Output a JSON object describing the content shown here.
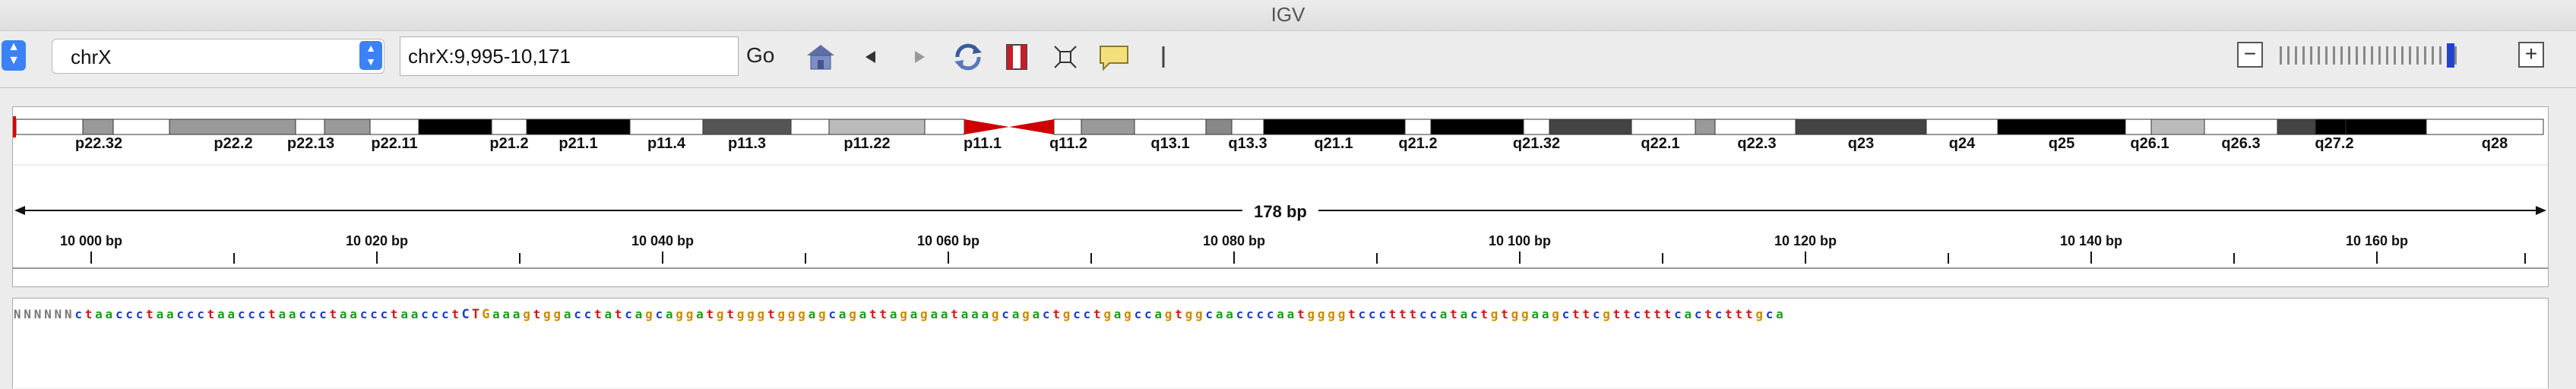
{
  "window": {
    "title": "IGV"
  },
  "toolbar": {
    "chromosome": "chrX",
    "locus": "chrX:9,995-10,171",
    "go_label": "Go",
    "buttons": [
      "home-icon",
      "back-icon",
      "forward-icon",
      "refresh-icon",
      "region-of-interest-icon",
      "resize-icon",
      "popup-info-icon",
      "ruler-toggle-icon"
    ],
    "zoom": {
      "minus": "−",
      "plus": "+",
      "levels": 24,
      "current": 22
    }
  },
  "ideogram": {
    "bands": [
      "p22.32",
      "p22.2",
      "p22.13",
      "p22.11",
      "p21.2",
      "p21.1",
      "p11.4",
      "p11.3",
      "p11.22",
      "p11.1",
      "q11.2",
      "q13.1",
      "q13.3",
      "q21.1",
      "q21.2",
      "q21.32",
      "q22.1",
      "q22.3",
      "q23",
      "q24",
      "q25",
      "q26.1",
      "q26.3",
      "q27.2",
      "q28"
    ]
  },
  "ruler": {
    "span_label": "178 bp",
    "tick_labels": [
      "10 000 bp",
      "10 020 bp",
      "10 040 bp",
      "10 060 bp",
      "10 080 bp",
      "10 100 bp",
      "10 120 bp",
      "10 140 bp",
      "10 160 bp"
    ]
  },
  "sequence": "NNNNNNctaaccctaaccctaaccctaaccctaaccctaaccctCTGaaagtggacctatcagcaggatgtgggtgggagcagattagagaataaagcagactgcctgagccagtggcaaccccaatggggtccctttccatactgtggaagcttcgttctttcactctttgca",
  "colors": {
    "A": "#1b9e1b",
    "C": "#1f3fbf",
    "G": "#c98a00",
    "T": "#d01818",
    "N": "#777777",
    "centromere": "#cc0000",
    "zoom_active": "#2244cc"
  }
}
